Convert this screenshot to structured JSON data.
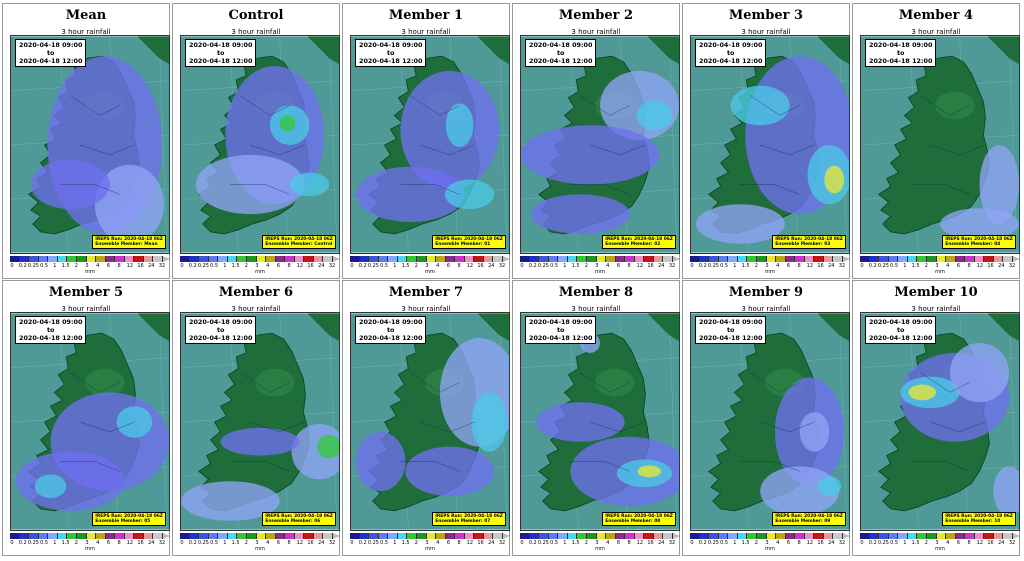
{
  "subtitle": "3 hour rainfall",
  "date_from": "2020-04-18 09:00",
  "date_to_word": "to",
  "date_to": "2020-04-18 12:00",
  "run_label": "IREPS Run: 2020-04-18 06Z",
  "unit": "mm",
  "legend_ticks": [
    "0",
    "0.2",
    "0.25",
    "0.5",
    "1",
    "1.5",
    "2",
    "3",
    "4",
    "6",
    "8",
    "12",
    "16",
    "24",
    "32"
  ],
  "legend_colors": [
    "#1a1a8c",
    "#2030c8",
    "#3a55e6",
    "#5b7cf2",
    "#86a8f8",
    "#48d8f0",
    "#2ec92e",
    "#1a9a1a",
    "#e8e830",
    "#b8a818",
    "#8a2a8a",
    "#d030d0",
    "#f08cc8",
    "#c01818",
    "#e89898",
    "#c8c8c8"
  ],
  "map_colors": {
    "sea": "#4f9a96",
    "land": "#1e6d3a",
    "land_light": "#2f8a4a",
    "blue": "#6f6ff0",
    "blue_light": "#8fa4f6",
    "cyan": "#4bc8e6",
    "green": "#35c63a",
    "yellow": "#e6e63a"
  },
  "panels": [
    {
      "title": "Mean",
      "member": "Mean"
    },
    {
      "title": "Control",
      "member": "Control"
    },
    {
      "title": "Member 1",
      "member": "01"
    },
    {
      "title": "Member 2",
      "member": "02"
    },
    {
      "title": "Member 3",
      "member": "03"
    },
    {
      "title": "Member 4",
      "member": "04"
    },
    {
      "title": "Member 5",
      "member": "05"
    },
    {
      "title": "Member 6",
      "member": "06"
    },
    {
      "title": "Member 7",
      "member": "07"
    },
    {
      "title": "Member 8",
      "member": "08"
    },
    {
      "title": "Member 9",
      "member": "09"
    },
    {
      "title": "Member 10",
      "member": "10"
    }
  ]
}
